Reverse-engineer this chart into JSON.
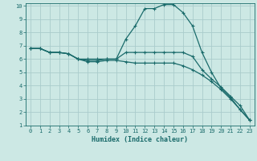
{
  "title": "",
  "xlabel": "Humidex (Indice chaleur)",
  "background_color": "#cce8e4",
  "grid_color": "#aacccc",
  "line_color": "#1a6b6b",
  "xlim": [
    -0.5,
    23.5
  ],
  "ylim": [
    1,
    10.2
  ],
  "xticks": [
    0,
    1,
    2,
    3,
    4,
    5,
    6,
    7,
    8,
    9,
    10,
    11,
    12,
    13,
    14,
    15,
    16,
    17,
    18,
    19,
    20,
    21,
    22,
    23
  ],
  "yticks": [
    1,
    2,
    3,
    4,
    5,
    6,
    7,
    8,
    9,
    10
  ],
  "line1_x": [
    0,
    1,
    2,
    3,
    4,
    5,
    6,
    7,
    8,
    9,
    10,
    11,
    12,
    13,
    14,
    15,
    16,
    17,
    18,
    19,
    20,
    21,
    22,
    23
  ],
  "line1_y": [
    6.8,
    6.8,
    6.5,
    6.5,
    6.4,
    6.0,
    6.0,
    6.0,
    6.0,
    6.0,
    7.5,
    8.5,
    9.8,
    9.8,
    10.1,
    10.1,
    9.5,
    8.5,
    6.5,
    5.0,
    3.8,
    3.1,
    2.2,
    1.4
  ],
  "line2_x": [
    0,
    1,
    2,
    3,
    4,
    5,
    6,
    7,
    8,
    9,
    10,
    11,
    12,
    13,
    14,
    15,
    16,
    17,
    18,
    19,
    20,
    21,
    22,
    23
  ],
  "line2_y": [
    6.8,
    6.8,
    6.5,
    6.5,
    6.4,
    6.0,
    5.9,
    5.9,
    6.0,
    6.0,
    6.5,
    6.5,
    6.5,
    6.5,
    6.5,
    6.5,
    6.5,
    6.2,
    5.2,
    4.5,
    3.9,
    3.2,
    2.5,
    1.4
  ],
  "line3_x": [
    0,
    1,
    2,
    3,
    4,
    5,
    6,
    7,
    8,
    9,
    10,
    11,
    12,
    13,
    14,
    15,
    16,
    17,
    18,
    19,
    20,
    21,
    22,
    23
  ],
  "line3_y": [
    6.8,
    6.8,
    6.5,
    6.5,
    6.4,
    6.0,
    5.8,
    5.8,
    5.9,
    5.9,
    5.8,
    5.7,
    5.7,
    5.7,
    5.7,
    5.7,
    5.5,
    5.2,
    4.8,
    4.3,
    3.7,
    3.0,
    2.2,
    1.4
  ],
  "tick_fontsize": 5.0,
  "xlabel_fontsize": 6.0
}
